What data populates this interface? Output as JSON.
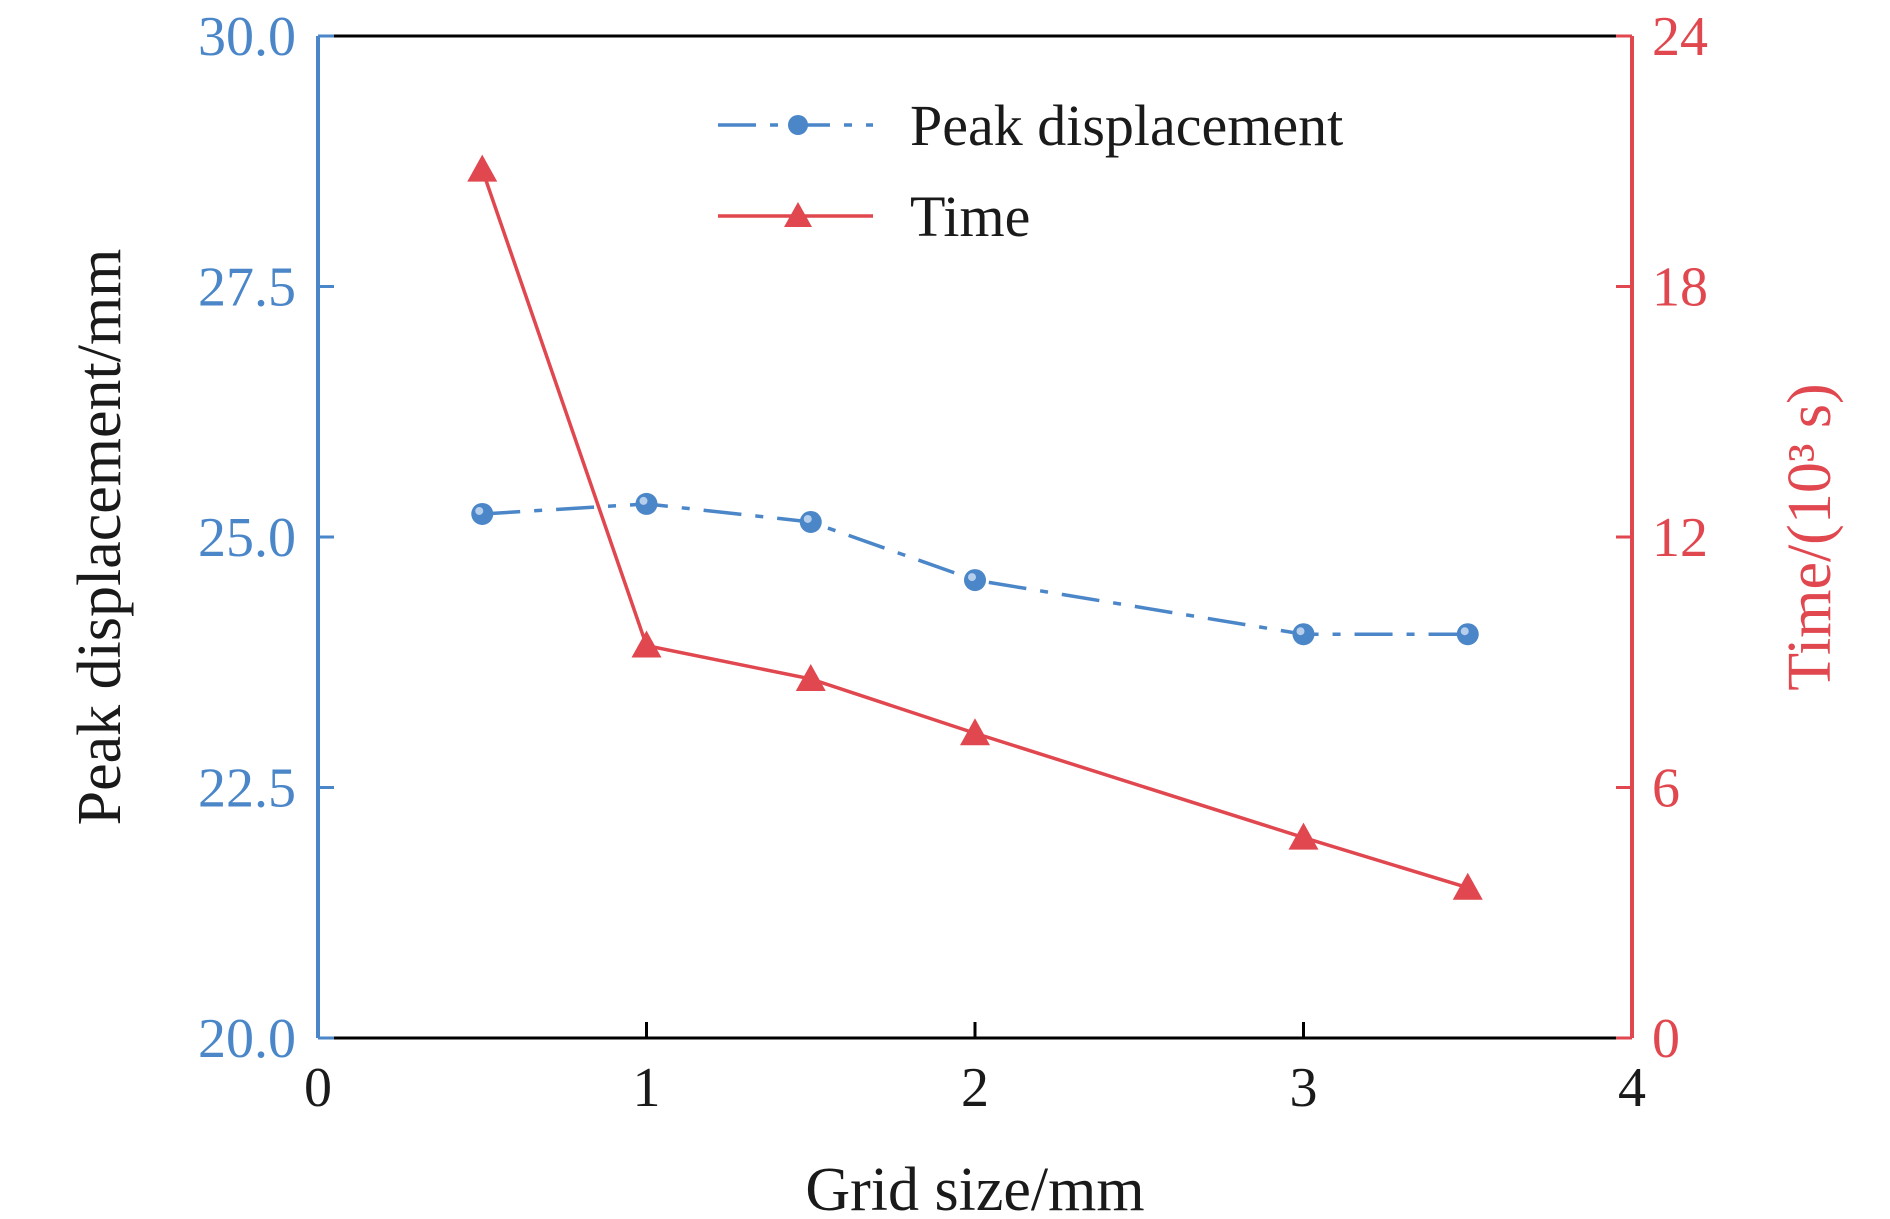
{
  "chart_data": {
    "type": "line",
    "xlabel": "Grid size/mm",
    "ylabel_left": "Peak displacement/mm",
    "ylabel_right": "Time/(10³ s)",
    "xlim": [
      0,
      4
    ],
    "ylim_left": [
      20.0,
      30.0
    ],
    "ylim_right": [
      0,
      24
    ],
    "x_ticks": [
      "0",
      "1",
      "2",
      "3",
      "4"
    ],
    "y_left_ticks": [
      "20.0",
      "22.5",
      "25.0",
      "27.5",
      "30.0"
    ],
    "y_right_ticks": [
      "0",
      "6",
      "12",
      "18",
      "24"
    ],
    "grid": false,
    "legend_position": "top-center",
    "series": [
      {
        "name": "Peak displacement",
        "axis": "left",
        "style": "dash-dot",
        "marker": "circle",
        "color": "#4a86c8",
        "x": [
          0.5,
          1.0,
          1.5,
          2.0,
          3.0,
          3.5
        ],
        "values": [
          25.23,
          25.33,
          25.15,
          24.57,
          24.03,
          24.03
        ]
      },
      {
        "name": "Time",
        "axis": "right",
        "style": "solid",
        "marker": "triangle",
        "color": "#e0474f",
        "x": [
          0.5,
          1.0,
          1.5,
          2.0,
          3.0,
          3.5
        ],
        "values": [
          20.8,
          9.4,
          8.6,
          7.3,
          4.8,
          3.6
        ]
      }
    ],
    "colors": {
      "left_axis": "#4a86c8",
      "right_axis": "#e0474f",
      "frame": "#000000"
    }
  }
}
